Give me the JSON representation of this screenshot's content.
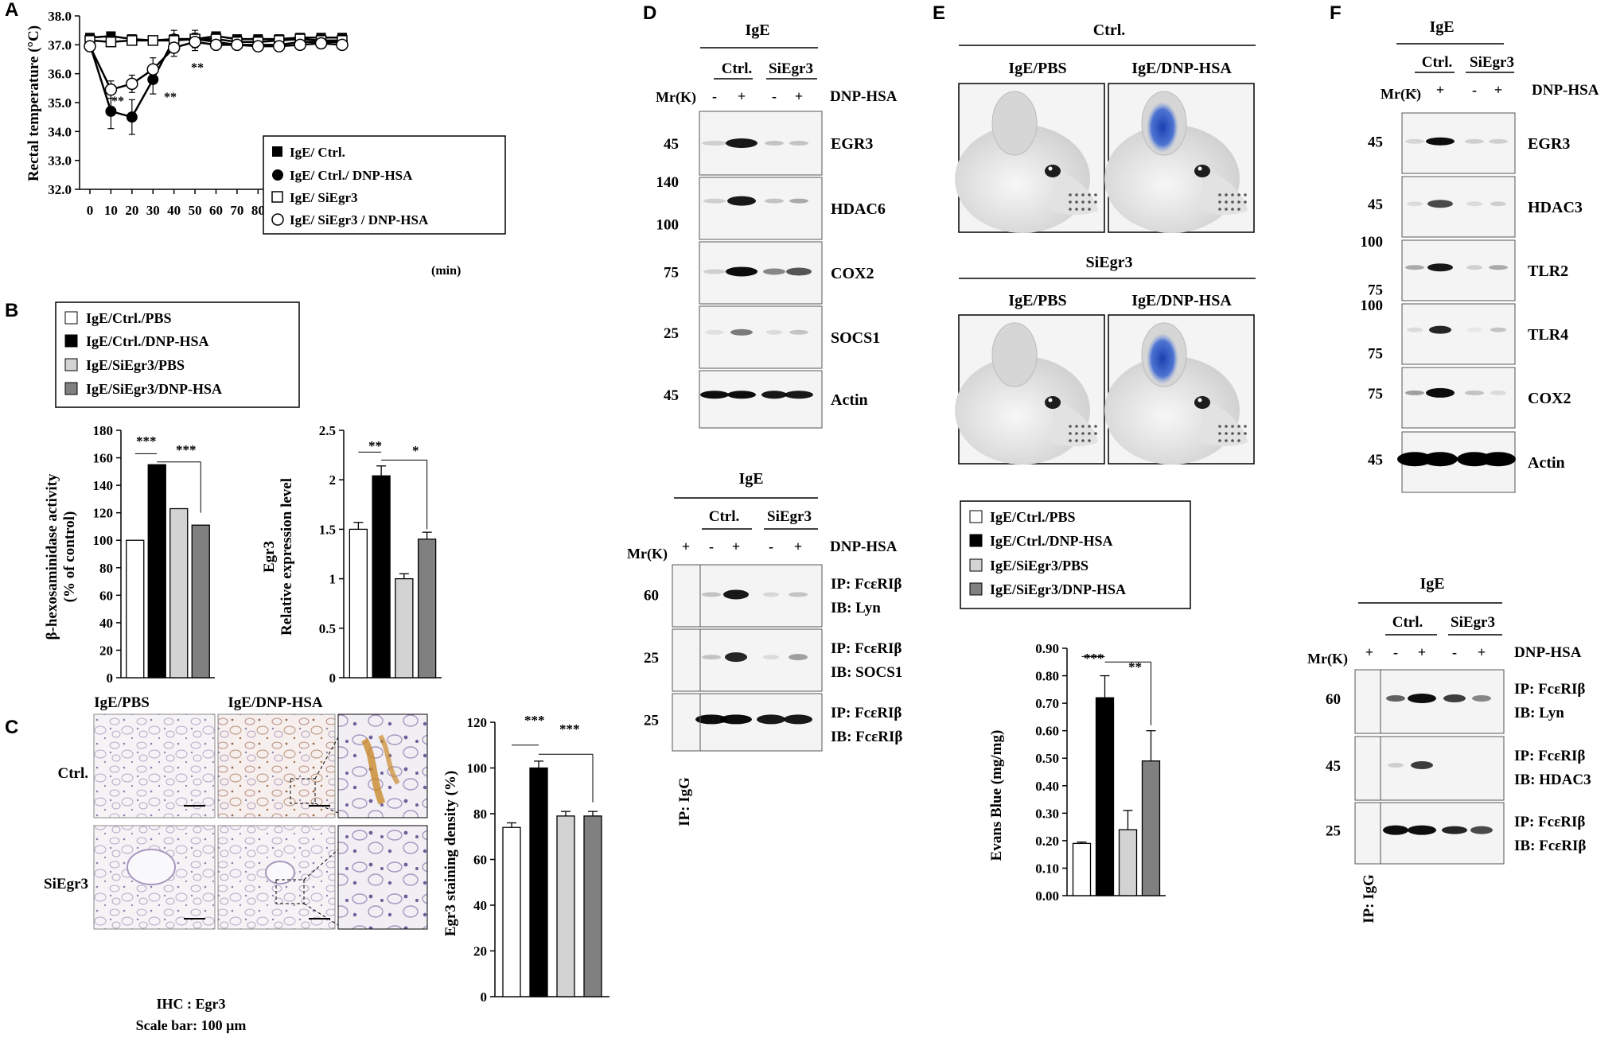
{
  "panel_labels": {
    "A": "A",
    "B": "B",
    "C": "C",
    "D": "D",
    "E": "E",
    "F": "F"
  },
  "panelA": {
    "ylabel": "Rectal temperature (°C)",
    "xunit": "(min)",
    "sig_labels": [
      "**",
      "**",
      "**"
    ],
    "legend": [
      "IgE/ Ctrl.",
      "IgE/ Ctrl./ DNP-HSA",
      "IgE/ SiEgr3",
      "IgE/ SiEgr3 / DNP-HSA"
    ]
  },
  "panelB": {
    "legend": [
      "IgE/Ctrl./PBS",
      "IgE/Ctrl./DNP-HSA",
      "IgE/SiEgr3/PBS",
      "IgE/SiEgr3/DNP-HSA"
    ],
    "left_ylabel1": "β-hexosaminidase activity",
    "left_ylabel2": "(% of control)",
    "left_sig": [
      "***",
      "***"
    ],
    "right_ylabel1": "Egr3",
    "right_ylabel2": "Relative expression level",
    "right_sig": [
      "**",
      "*"
    ]
  },
  "panelC": {
    "col_labels": [
      "IgE/PBS",
      "IgE/DNP-HSA"
    ],
    "row_labels": [
      "Ctrl.",
      "SiEgr3"
    ],
    "caption1": "IHC : Egr3",
    "caption2": "Scale bar: 100 μm",
    "ylabel": "Egr3 staining density (%)",
    "sig": [
      "***",
      "***"
    ]
  },
  "panelD": {
    "top_header": "IgE",
    "groups": [
      "Ctrl.",
      "SiEgr3"
    ],
    "mr": "Mr(K)",
    "treatment": "DNP-HSA",
    "signs": [
      "-",
      "+",
      "-",
      "+"
    ],
    "blots": [
      {
        "label": "EGR3",
        "mw": "45"
      },
      {
        "label": "HDAC6",
        "mw_top": "140",
        "mw": "100"
      },
      {
        "label": "COX2",
        "mw": "75"
      },
      {
        "label": "SOCS1",
        "mw": "25"
      },
      {
        "label": "Actin",
        "mw": "45"
      }
    ],
    "ip_header": "IgE",
    "ip_signs": [
      "+",
      "-",
      "+",
      "-",
      "+"
    ],
    "ip_blots": [
      {
        "ip": "IP: FcεRIβ",
        "ib": "IB: Lyn",
        "mw": "60"
      },
      {
        "ip": "IP: FcεRIβ",
        "ib": "IB: SOCS1",
        "mw": "25"
      },
      {
        "ip": "IP: FcεRIβ",
        "ib": "IB: FcεRIβ",
        "mw": "25"
      }
    ],
    "ip_igg": "IP: IgG"
  },
  "panelE": {
    "group1": "Ctrl.",
    "group2": "SiEgr3",
    "col_labels": [
      "IgE/PBS",
      "IgE/DNP-HSA"
    ],
    "legend": [
      "IgE/Ctrl./PBS",
      "IgE/Ctrl./DNP-HSA",
      "IgE/SiEgr3/PBS",
      "IgE/SiEgr3/DNP-HSA"
    ],
    "ylabel": "Evans Blue (mg/mg)",
    "sig": [
      "***",
      "**"
    ]
  },
  "panelF": {
    "top_header": "IgE",
    "groups": [
      "Ctrl.",
      "SiEgr3"
    ],
    "mr": "Mr(K)",
    "treatment": "DNP-HSA",
    "signs": [
      "-",
      "+",
      "-",
      "+"
    ],
    "blots": [
      {
        "label": "EGR3",
        "mw": "45"
      },
      {
        "label": "HDAC3",
        "mw": "45"
      },
      {
        "label": "TLR2",
        "mw_top": "100",
        "mw": "75"
      },
      {
        "label": "TLR4",
        "mw_top": "100",
        "mw": "75"
      },
      {
        "label": "COX2",
        "mw": "75"
      },
      {
        "label": "Actin",
        "mw": "45"
      }
    ],
    "ip_header": "IgE",
    "ip_signs": [
      "+",
      "-",
      "+",
      "-",
      "+"
    ],
    "ip_blots": [
      {
        "ip": "IP: FcεRIβ",
        "ib": "IB: Lyn",
        "mw": "60"
      },
      {
        "ip": "IP: FcεRIβ",
        "ib": "IB: HDAC3",
        "mw": "45"
      },
      {
        "ip": "IP: FcεRIβ",
        "ib": "IB: FcεRIβ",
        "mw": "25"
      }
    ],
    "ip_igg": "IP: IgG"
  },
  "chart_data": [
    {
      "id": "A",
      "type": "line",
      "ylabel": "Rectal temperature (°C)",
      "xlabel": "(min)",
      "ylim": [
        32.0,
        38.0
      ],
      "yticks": [
        32.0,
        33.0,
        34.0,
        35.0,
        36.0,
        37.0,
        38.0
      ],
      "x": [
        0,
        10,
        20,
        30,
        40,
        50,
        60,
        70,
        80,
        90,
        100,
        110,
        120
      ],
      "series": [
        {
          "name": "IgE/ Ctrl.",
          "marker": "filled-square",
          "values": [
            37.25,
            37.3,
            37.2,
            37.15,
            37.2,
            37.2,
            37.3,
            37.2,
            37.2,
            37.2,
            37.25,
            37.25,
            37.25
          ]
        },
        {
          "name": "IgE/ Ctrl./ DNP-HSA",
          "marker": "filled-circle",
          "values": [
            37.0,
            34.7,
            34.5,
            35.8,
            37.2,
            37.2,
            37.1,
            37.0,
            37.0,
            37.0,
            37.1,
            37.1,
            37.1
          ],
          "err": [
            0.1,
            0.6,
            0.6,
            0.5,
            0.3,
            0.3,
            0.1,
            0.1,
            0.1,
            0.1,
            0.1,
            0.1,
            0.1
          ]
        },
        {
          "name": "IgE/ SiEgr3",
          "marker": "open-square",
          "values": [
            37.15,
            37.1,
            37.15,
            37.15,
            37.15,
            37.2,
            37.2,
            37.1,
            37.1,
            37.15,
            37.2,
            37.15,
            37.15
          ]
        },
        {
          "name": "IgE/ SiEgr3 / DNP-HSA",
          "marker": "open-circle",
          "values": [
            36.95,
            35.45,
            35.65,
            36.15,
            36.9,
            37.1,
            37.0,
            37.0,
            36.95,
            36.95,
            37.0,
            37.05,
            37.0
          ],
          "err": [
            0.1,
            0.3,
            0.3,
            0.4,
            0.3,
            0.3,
            0.1,
            0.1,
            0.1,
            0.1,
            0.1,
            0.1,
            0.1
          ]
        }
      ]
    },
    {
      "id": "B-left",
      "type": "bar",
      "ylabel": "β-hexosaminidase activity (% of control)",
      "ylim": [
        0,
        180
      ],
      "yticks": [
        0,
        20,
        40,
        60,
        80,
        100,
        120,
        140,
        160,
        180
      ],
      "categories": [
        "IgE/Ctrl./PBS",
        "IgE/Ctrl./DNP-HSA",
        "IgE/SiEgr3/PBS",
        "IgE/SiEgr3/DNP-HSA"
      ],
      "values": [
        100,
        155,
        123,
        111
      ],
      "colors": [
        "#ffffff",
        "#000000",
        "#d3d3d3",
        "#808080"
      ]
    },
    {
      "id": "B-right",
      "type": "bar",
      "ylabel": "Egr3 Relative expression level",
      "ylim": [
        0,
        2.5
      ],
      "yticks": [
        0,
        0.5,
        1,
        1.5,
        2,
        2.5
      ],
      "categories": [
        "IgE/Ctrl./PBS",
        "IgE/Ctrl./DNP-HSA",
        "IgE/SiEgr3/PBS",
        "IgE/SiEgr3/DNP-HSA"
      ],
      "values": [
        1.5,
        2.04,
        1.0,
        1.4
      ],
      "err": [
        0.07,
        0.1,
        0.05,
        0.07
      ],
      "colors": [
        "#ffffff",
        "#000000",
        "#d3d3d3",
        "#808080"
      ]
    },
    {
      "id": "C",
      "type": "bar",
      "ylabel": "Egr3 staining density (%)",
      "ylim": [
        0,
        120
      ],
      "yticks": [
        0,
        20,
        40,
        60,
        80,
        100,
        120
      ],
      "categories": [
        "IgE/Ctrl./PBS",
        "IgE/Ctrl./DNP-HSA",
        "IgE/SiEgr3/PBS",
        "IgE/SiEgr3/DNP-HSA"
      ],
      "values": [
        74,
        100,
        79,
        79
      ],
      "err": [
        2,
        3,
        2,
        2
      ],
      "colors": [
        "#ffffff",
        "#000000",
        "#d3d3d3",
        "#808080"
      ]
    },
    {
      "id": "E",
      "type": "bar",
      "ylabel": "Evans Blue (mg/mg)",
      "ylim": [
        0,
        0.9
      ],
      "yticks": [
        0.0,
        0.1,
        0.2,
        0.3,
        0.4,
        0.5,
        0.6,
        0.7,
        0.8,
        0.9
      ],
      "categories": [
        "IgE/Ctrl./PBS",
        "IgE/Ctrl./DNP-HSA",
        "IgE/SiEgr3/PBS",
        "IgE/SiEgr3/DNP-HSA"
      ],
      "values": [
        0.19,
        0.72,
        0.24,
        0.49
      ],
      "err": [
        0.005,
        0.08,
        0.07,
        0.11
      ],
      "colors": [
        "#ffffff",
        "#000000",
        "#d3d3d3",
        "#808080"
      ]
    }
  ]
}
